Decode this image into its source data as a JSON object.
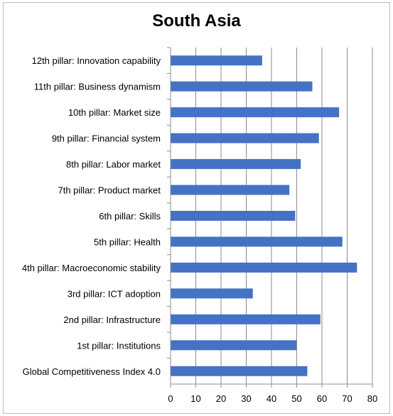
{
  "chart_data": {
    "type": "bar",
    "orientation": "horizontal",
    "title": "South Asia",
    "categories": [
      "12th pillar: Innovation capability",
      "11th pillar: Business dynamism",
      "10th pillar: Market size",
      "9th pillar: Financial system",
      "8th pillar: Labor market",
      "7th pillar: Product market",
      "6th pillar: Skills",
      "5th pillar: Health",
      "4th pillar: Macroeconomic stability",
      "3rd pillar: ICT adoption",
      "2nd pillar: Infrastructure",
      "1st pillar: Institutions",
      "Global Competitiveness Index 4.0"
    ],
    "values": [
      36.3,
      56.2,
      66.8,
      58.8,
      51.6,
      47.1,
      49.4,
      68.1,
      73.9,
      32.6,
      59.4,
      49.9,
      54.2
    ],
    "xlim": [
      0,
      80
    ],
    "xticks": [
      "0",
      "10",
      "20",
      "30",
      "40",
      "50",
      "60",
      "70",
      "80"
    ],
    "grid": "vertical",
    "bar_color": "#4472C4",
    "legend": "none"
  }
}
